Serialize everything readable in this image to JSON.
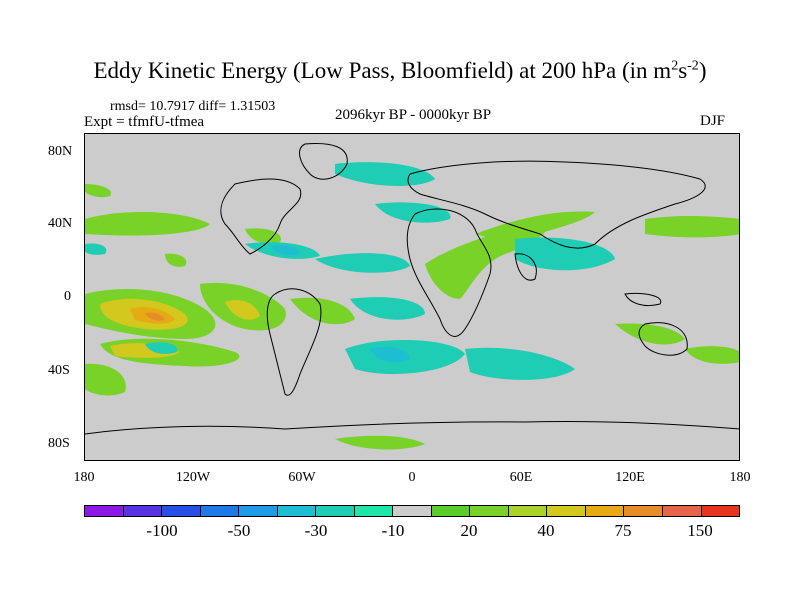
{
  "title": {
    "main": "Eddy Kinetic Energy (Low Pass, Bloomfield) at 200 hPa (in m",
    "sup1": "2",
    "mid": "s",
    "sup2": "-2",
    "end": ")"
  },
  "stats": "rmsd= 10.7917 diff= 1.31503",
  "expt": "Expt = tfmfU-tfmea",
  "period": "2096kyr BP - 0000kyr BP",
  "season": "DJF",
  "map": {
    "y_ticks": [
      "80N",
      "40N",
      "0",
      "40S",
      "80S"
    ],
    "x_ticks": [
      "180",
      "120W",
      "60W",
      "0",
      "60E",
      "120E",
      "180"
    ],
    "background_color": "#cccccc",
    "coast_color": "#000000"
  },
  "colorbar": {
    "colors": [
      "#8c1ae6",
      "#5a32e6",
      "#2850e6",
      "#1e78e6",
      "#1e9be6",
      "#1ebed2",
      "#1ecdb4",
      "#1ee6aa",
      "#cccccc",
      "#5acd28",
      "#78d228",
      "#aad228",
      "#d2c81e",
      "#e6aa14",
      "#e68c28",
      "#e6644b",
      "#e6321e"
    ],
    "labels": [
      "-100",
      "-50",
      "-30",
      "-10",
      "20",
      "40",
      "75",
      "150"
    ]
  }
}
